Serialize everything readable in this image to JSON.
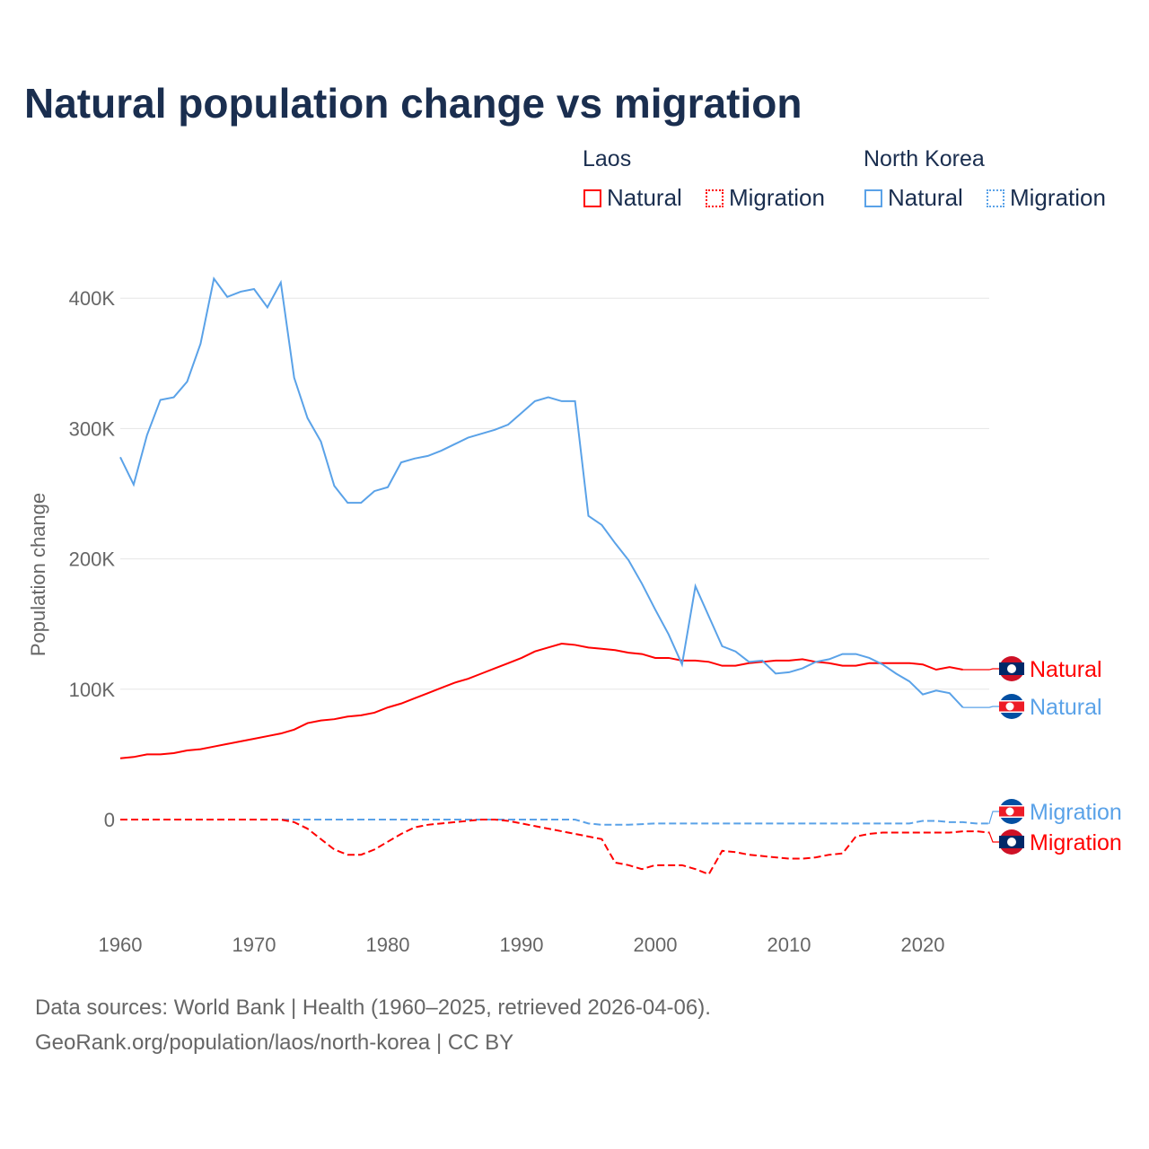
{
  "chart_data": {
    "type": "line",
    "title": "Natural population change vs migration",
    "ylabel": "Population change",
    "xlabel": "",
    "xlim": [
      1960,
      2025
    ],
    "ylim": [
      -70000,
      430000
    ],
    "xticks": [
      "1960",
      "1970",
      "1980",
      "1990",
      "2000",
      "2010",
      "2020"
    ],
    "yticks": [
      {
        "v": 0,
        "label": "0"
      },
      {
        "v": 100000,
        "label": "100K"
      },
      {
        "v": 200000,
        "label": "200K"
      },
      {
        "v": 300000,
        "label": "300K"
      },
      {
        "v": 400000,
        "label": "400K"
      }
    ],
    "legend": {
      "groups": [
        {
          "country": "Laos",
          "items": [
            "Natural",
            "Migration"
          ]
        },
        {
          "country": "North Korea",
          "items": [
            "Natural",
            "Migration"
          ]
        }
      ],
      "placement": "top-right"
    },
    "series": [
      {
        "name": "Laos Natural",
        "country": "Laos",
        "kind": "Natural",
        "color": "#ff0000",
        "dash": false,
        "start": 1960,
        "values_k": [
          47,
          48,
          50,
          50,
          51,
          53,
          54,
          56,
          58,
          60,
          62,
          64,
          66,
          69,
          74,
          76,
          77,
          79,
          80,
          82,
          86,
          89,
          93,
          97,
          101,
          105,
          108,
          112,
          116,
          120,
          124,
          129,
          132,
          135,
          134,
          132,
          131,
          130,
          128,
          127,
          124,
          124,
          122,
          122,
          121,
          118,
          118,
          120,
          121,
          122,
          122,
          123,
          121,
          120,
          118,
          118,
          120,
          120,
          120,
          120,
          119,
          115,
          117,
          115
        ]
      },
      {
        "name": "North Korea Natural",
        "country": "North Korea",
        "kind": "Natural",
        "color": "#5aa2e8",
        "dash": false,
        "start": 1960,
        "values_k": [
          278,
          257,
          295,
          322,
          324,
          336,
          365,
          415,
          401,
          405,
          407,
          393,
          412,
          339,
          308,
          290,
          256,
          243,
          243,
          252,
          255,
          274,
          277,
          279,
          283,
          288,
          293,
          296,
          299,
          303,
          312,
          321,
          324,
          321,
          321,
          233,
          226,
          212,
          199,
          181,
          161,
          142,
          119,
          179,
          156,
          133,
          129,
          121,
          122,
          112,
          113,
          116,
          121,
          123,
          127,
          127,
          124,
          119,
          112,
          106,
          96,
          99,
          97,
          86
        ]
      },
      {
        "name": "North Korea Migration",
        "country": "North Korea",
        "kind": "Migration",
        "color": "#5aa2e8",
        "dash": true,
        "start": 1960,
        "values_k": [
          0,
          0,
          0,
          0,
          0,
          0,
          0,
          0,
          0,
          0,
          0,
          0,
          0,
          0,
          0,
          0,
          0,
          0,
          0,
          0,
          0,
          0,
          0,
          0,
          0,
          0,
          0,
          0,
          0,
          0,
          0,
          0,
          0,
          0,
          0,
          -3,
          -4,
          -4,
          -4,
          -3.5,
          -3,
          -3,
          -3,
          -3,
          -3,
          -3,
          -3,
          -3,
          -3,
          -3,
          -3,
          -3,
          -3,
          -3,
          -3,
          -3,
          -3,
          -3,
          -3,
          -3,
          -1,
          -1,
          -2,
          -2,
          -3,
          -3
        ]
      },
      {
        "name": "Laos Migration",
        "country": "Laos",
        "kind": "Migration",
        "color": "#ff0000",
        "dash": true,
        "start": 1960,
        "values_k": [
          0,
          0,
          0,
          0,
          0,
          0,
          0,
          0,
          0,
          0,
          0,
          0,
          0,
          -2,
          -7,
          -15,
          -23,
          -27,
          -27,
          -23,
          -17,
          -11,
          -6,
          -4,
          -3,
          -2,
          -1,
          0,
          0,
          -1,
          -3,
          -5,
          -7,
          -9,
          -11,
          -13,
          -15,
          -33,
          -35,
          -38,
          -35,
          -35,
          -35,
          -38,
          -42,
          -24,
          -25,
          -27,
          -28,
          -29,
          -30,
          -30,
          -29,
          -27,
          -26,
          -13,
          -11,
          -10,
          -10,
          -10,
          -10,
          -10,
          -10,
          -9,
          -9,
          -10
        ]
      }
    ],
    "end_labels": [
      {
        "text": "Natural",
        "series": 0
      },
      {
        "text": "Natural",
        "series": 1
      },
      {
        "text": "Migration",
        "series": 2
      },
      {
        "text": "Migration",
        "series": 3
      }
    ]
  },
  "footer": {
    "line1": "Data sources: World Bank | Health (1960–2025, retrieved 2026-04-06).",
    "line2": "GeoRank.org/population/laos/north-korea | CC BY"
  }
}
